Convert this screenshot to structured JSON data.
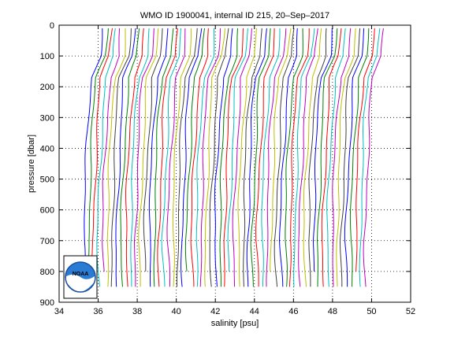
{
  "chart_data": {
    "type": "line",
    "title": "WMO ID 1900041, internal ID 215, 20–Sep–2017",
    "xlabel": "salinity [psu]",
    "ylabel": "pressure [dbar]",
    "xlim": [
      34,
      52
    ],
    "ylim": [
      900,
      0
    ],
    "y_reversed": true,
    "grid": "dotted",
    "legend": "none",
    "x_ticks": [
      "34",
      "36",
      "38",
      "40",
      "42",
      "44",
      "46",
      "48",
      "50",
      "52"
    ],
    "y_ticks": [
      "0",
      "100",
      "200",
      "300",
      "400",
      "500",
      "600",
      "700",
      "800",
      "900"
    ],
    "colors": [
      "#0000ff",
      "#008000",
      "#ff0000",
      "#00bfbf",
      "#bf00bf",
      "#bfbf00",
      "#404040"
    ],
    "series_count": 61,
    "series_start_salinity": 36.2,
    "series_spacing": 0.24,
    "profile_offsets": [
      {
        "p": 10,
        "ds": 0.0
      },
      {
        "p": 100,
        "ds": -0.1
      },
      {
        "p": 170,
        "ds": -0.55
      },
      {
        "p": 300,
        "ds": -0.7
      },
      {
        "p": 500,
        "ds": -0.85
      },
      {
        "p": 700,
        "ds": -0.95
      },
      {
        "p": 850,
        "ds": -0.9
      }
    ],
    "logo": {
      "text": "NOAA"
    }
  }
}
